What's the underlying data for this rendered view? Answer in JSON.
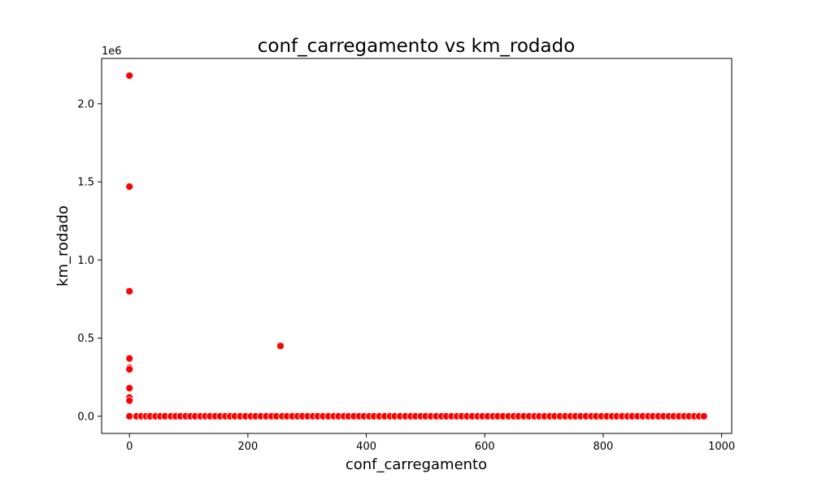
{
  "chart_data": {
    "type": "scatter",
    "title": "conf_carregamento vs km_rodado",
    "xlabel": "conf_carregamento",
    "ylabel": "km_rodado",
    "y_multiplier_label": "1e6",
    "xlim": [
      -47,
      1017
    ],
    "ylim": [
      -0.11,
      2.29
    ],
    "x_ticks": [
      0,
      200,
      400,
      600,
      800,
      1000
    ],
    "x_tick_labels": [
      "0",
      "200",
      "400",
      "600",
      "800",
      "1000"
    ],
    "y_ticks": [
      0.0,
      0.5,
      1.0,
      1.5,
      2.0
    ],
    "y_tick_labels": [
      "0.0",
      "0.5",
      "1.0",
      "1.5",
      "2.0"
    ],
    "grid": false,
    "point_color": "#ff0000",
    "point_edge_color": "#ffffff",
    "y_unit": "1e6 (millions)",
    "outlier_points": [
      {
        "x": 0,
        "y": 2.18
      },
      {
        "x": 0,
        "y": 1.47
      },
      {
        "x": 0,
        "y": 0.8
      },
      {
        "x": 0,
        "y": 0.37
      },
      {
        "x": 0,
        "y": 0.31
      },
      {
        "x": 0,
        "y": 0.3
      },
      {
        "x": 0,
        "y": 0.18
      },
      {
        "x": 0,
        "y": 0.12
      },
      {
        "x": 0,
        "y": 0.1
      },
      {
        "x": 255,
        "y": 0.45
      }
    ],
    "baseline_points_x": [
      0,
      12,
      20,
      28,
      35,
      44,
      52,
      60,
      70,
      78,
      86,
      95,
      103,
      111,
      120,
      128,
      136,
      145,
      153,
      162,
      170,
      178,
      187,
      196,
      205,
      213,
      222,
      231,
      240,
      248,
      258,
      266,
      275,
      284,
      292,
      301,
      310,
      318,
      327,
      336,
      345,
      353,
      362,
      370,
      379,
      388,
      396,
      405,
      413,
      422,
      431,
      440,
      448,
      457,
      466,
      475,
      483,
      492,
      500,
      509,
      518,
      527,
      535,
      544,
      553,
      561,
      570,
      579,
      588,
      596,
      605,
      614,
      622,
      631,
      640,
      649,
      657,
      666,
      675,
      684,
      692,
      701,
      710,
      718,
      727,
      736,
      745,
      753,
      762,
      771,
      780,
      788,
      797,
      806,
      815,
      823,
      832,
      841,
      849,
      858,
      867,
      876,
      884,
      893,
      902,
      911,
      919,
      928,
      937,
      945,
      954,
      962,
      970
    ],
    "baseline_y": 0.0
  }
}
